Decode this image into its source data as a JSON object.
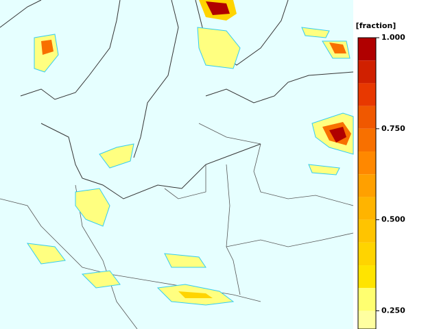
{
  "colorbar": {
    "title": "[fraction]",
    "levels": [
      1,
      0.9375,
      0.875,
      0.8125,
      0.75,
      0.6875,
      0.625,
      0.5625,
      0.5,
      0.4375,
      0.375,
      0.3125,
      0.25,
      0.2
    ],
    "colors": [
      "#b00000",
      "#d02000",
      "#e83800",
      "#f05800",
      "#f87000",
      "#ff8800",
      "#ffa000",
      "#ffb400",
      "#ffc400",
      "#ffd400",
      "#ffe400",
      "#ffff70",
      "#ffffa0"
    ],
    "ticks": [
      {
        "value": 1,
        "label": "1.000"
      },
      {
        "value": 0.75,
        "label": "0.750"
      },
      {
        "value": 0.5,
        "label": "0.500"
      },
      {
        "value": 0.25,
        "label": "0.250"
      }
    ]
  }
}
